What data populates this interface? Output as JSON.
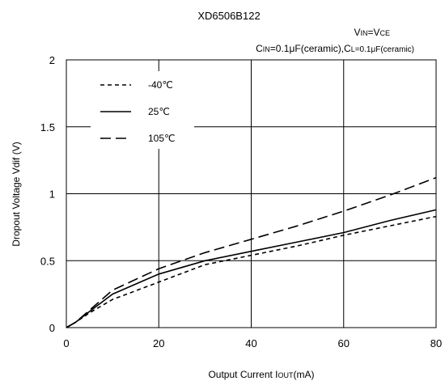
{
  "chart_data": {
    "type": "line",
    "title": "XD6506B122",
    "conditions": [
      {
        "main": "V",
        "sub": "IN",
        "rest": "=V",
        "sub2": "CE",
        "tail": ""
      },
      {
        "main": "C",
        "sub": "IN",
        "rest": "=0.1μF(ceramic),C",
        "sub2": "L",
        "tail": "=0.1μF(ceramic)"
      }
    ],
    "xlabel": {
      "main": "Output Current  I",
      "sub": "OUT",
      "tail": "(mA)"
    },
    "ylabel": "Dropout Voltage  Vdif (V)",
    "xlim": [
      0,
      80
    ],
    "ylim": [
      0,
      2
    ],
    "x_ticks": [
      "0",
      "20",
      "40",
      "60",
      "80"
    ],
    "y_ticks": [
      "0",
      "0.5",
      "1",
      "1.5",
      "2"
    ],
    "grid": true,
    "legend_placement": "top-left",
    "series": [
      {
        "name": "-40℃",
        "dash": "short-dash",
        "points": [
          [
            0,
            0
          ],
          [
            2,
            0.04
          ],
          [
            5,
            0.11
          ],
          [
            10,
            0.21
          ],
          [
            20,
            0.34
          ],
          [
            30,
            0.47
          ],
          [
            40,
            0.54
          ],
          [
            50,
            0.61
          ],
          [
            60,
            0.69
          ],
          [
            70,
            0.76
          ],
          [
            80,
            0.83
          ]
        ]
      },
      {
        "name": "25℃",
        "dash": "solid",
        "points": [
          [
            0,
            0
          ],
          [
            2,
            0.04
          ],
          [
            5,
            0.12
          ],
          [
            10,
            0.25
          ],
          [
            20,
            0.4
          ],
          [
            30,
            0.5
          ],
          [
            40,
            0.57
          ],
          [
            50,
            0.64
          ],
          [
            60,
            0.71
          ],
          [
            70,
            0.8
          ],
          [
            80,
            0.88
          ]
        ]
      },
      {
        "name": "105℃",
        "dash": "long-dash",
        "points": [
          [
            0,
            0
          ],
          [
            2,
            0.04
          ],
          [
            5,
            0.13
          ],
          [
            10,
            0.28
          ],
          [
            20,
            0.44
          ],
          [
            30,
            0.56
          ],
          [
            40,
            0.66
          ],
          [
            50,
            0.76
          ],
          [
            60,
            0.87
          ],
          [
            70,
            0.99
          ],
          [
            80,
            1.12
          ]
        ]
      }
    ]
  }
}
